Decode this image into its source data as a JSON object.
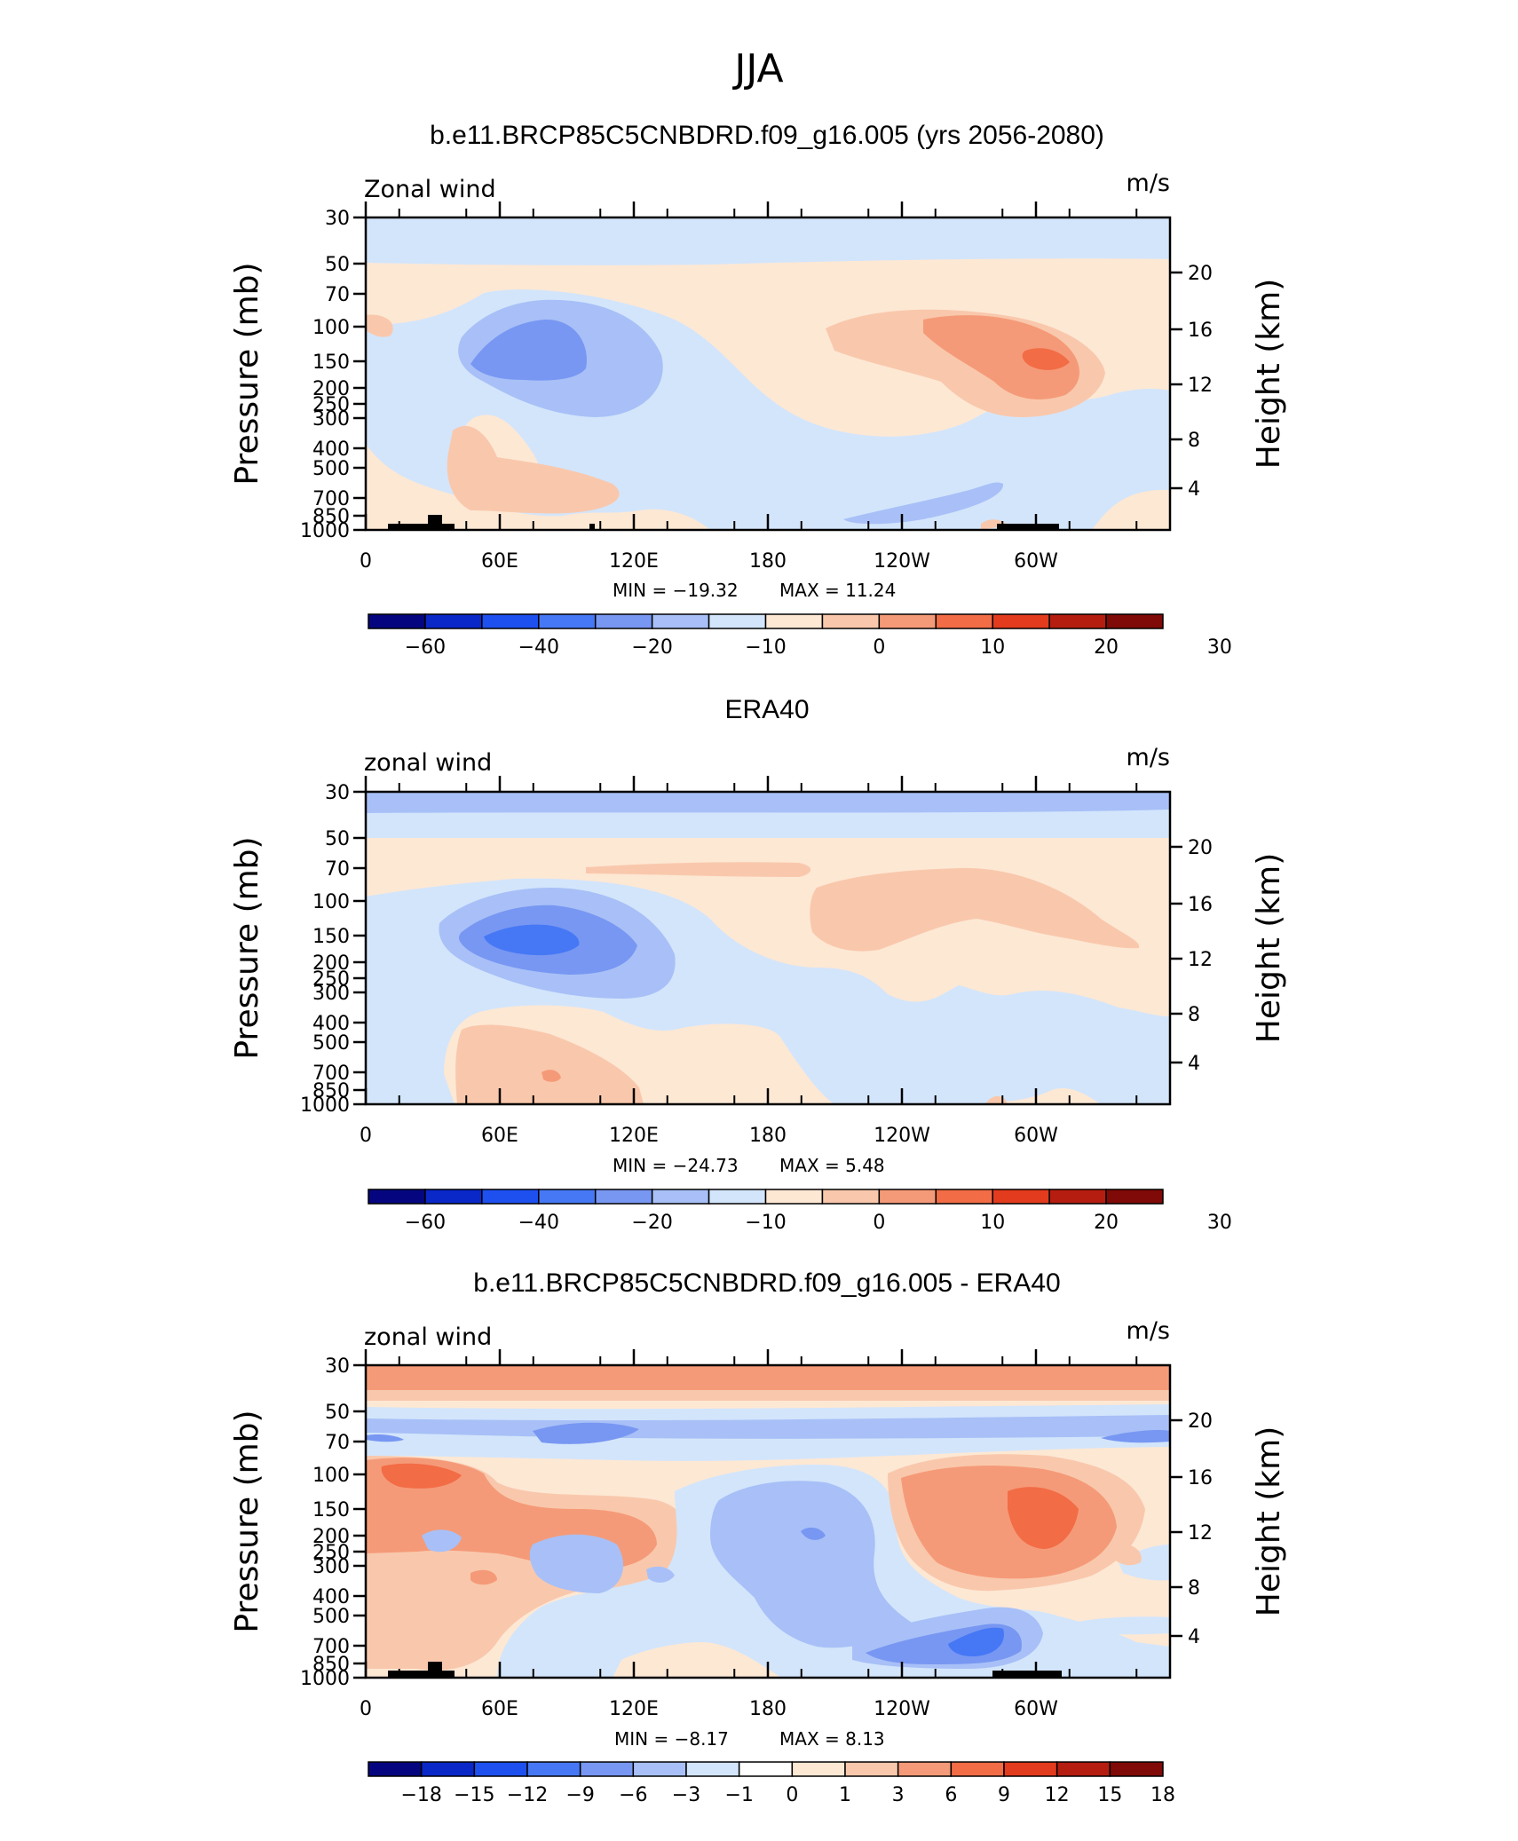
{
  "title": "JJA",
  "colors": {
    "model_obs_scale": [
      "#05067f",
      "#0a28c8",
      "#1e50f0",
      "#4678f5",
      "#7897f2",
      "#a8c0f7",
      "#d3e5fb",
      "#fde8d4",
      "#f9c8ac",
      "#f59a78",
      "#f26c46",
      "#e33b1d",
      "#b51d10",
      "#7f0a07"
    ],
    "diff_scale": [
      "#05067f",
      "#0a28c8",
      "#1e50f0",
      "#4678f5",
      "#7897f2",
      "#a8c0f7",
      "#d3e5fb",
      "#ffffff",
      "#fde8d4",
      "#f9c8ac",
      "#f59a78",
      "#f26c46",
      "#e33b1d",
      "#b51d10",
      "#7f0a07"
    ]
  },
  "chart_data": [
    {
      "type": "heatmap",
      "title": "b.e11.BRCP85C5CNBDRD.f09_g16.005 (yrs 2056-2080)",
      "left_label": "Zonal wind",
      "units": "m/s",
      "xlabel": "",
      "ylabel": "Pressure (mb)",
      "y2label": "Height (km)",
      "xticks": [
        "0",
        "60E",
        "120E",
        "180",
        "120W",
        "60W"
      ],
      "yticks": [
        "30",
        "50",
        "70",
        "100",
        "150",
        "200",
        "250",
        "300",
        "400",
        "500",
        "700",
        "850",
        "1000"
      ],
      "y2ticks": [
        "20",
        "16",
        "12",
        "8",
        "4"
      ],
      "min_label": "MIN = −19.32",
      "max_label": "MAX = 11.24",
      "min": -19.32,
      "max": 11.24,
      "colorbar_labels": [
        "−60",
        "−40",
        "−20",
        "−10",
        "0",
        "10",
        "20",
        "30"
      ],
      "regions": [
        {
          "level": 6,
          "area": "stratosphere band 30-50 mb"
        },
        {
          "level": 5,
          "area": "jet core near 75E 150 mb"
        },
        {
          "level": 4,
          "area": "jet center near 75E 150 mb"
        },
        {
          "level": 9,
          "area": "easterly-free max near 60W 150 mb"
        },
        {
          "level": 10,
          "area": "max near 60W 150 mb"
        }
      ]
    },
    {
      "type": "heatmap",
      "title": "ERA40",
      "left_label": "zonal wind",
      "units": "m/s",
      "xlabel": "",
      "ylabel": "Pressure (mb)",
      "y2label": "Height (km)",
      "xticks": [
        "0",
        "60E",
        "120E",
        "180",
        "120W",
        "60W"
      ],
      "yticks": [
        "30",
        "50",
        "70",
        "100",
        "150",
        "200",
        "250",
        "300",
        "400",
        "500",
        "700",
        "850",
        "1000"
      ],
      "y2ticks": [
        "20",
        "16",
        "12",
        "8",
        "4"
      ],
      "min_label": "MIN = −24.73",
      "max_label": "MAX = 5.48",
      "min": -24.73,
      "max": 5.48,
      "colorbar_labels": [
        "−60",
        "−40",
        "−20",
        "−10",
        "0",
        "10",
        "20",
        "30"
      ],
      "regions": [
        {
          "level": 5,
          "area": "top band 30-40 mb"
        },
        {
          "level": 3,
          "area": "jet center near 75E 150 mb"
        },
        {
          "level": 8,
          "area": "max near 60W 120 mb"
        }
      ]
    },
    {
      "type": "heatmap",
      "title": "b.e11.BRCP85C5CNBDRD.f09_g16.005 - ERA40",
      "left_label": "zonal wind",
      "units": "m/s",
      "xlabel": "",
      "ylabel": "Pressure (mb)",
      "y2label": "Height (km)",
      "xticks": [
        "0",
        "60E",
        "120E",
        "180",
        "120W",
        "60W"
      ],
      "yticks": [
        "30",
        "50",
        "70",
        "100",
        "150",
        "200",
        "250",
        "300",
        "400",
        "500",
        "700",
        "850",
        "1000"
      ],
      "y2ticks": [
        "20",
        "16",
        "12",
        "8",
        "4"
      ],
      "min_label": "MIN = −8.17",
      "max_label": "MAX = 8.13",
      "min": -8.17,
      "max": 8.13,
      "colorbar_labels": [
        "−18",
        "−15",
        "−12",
        "−9",
        "−6",
        "−3",
        "−1",
        "0",
        "1",
        "3",
        "6",
        "9",
        "12",
        "15",
        "18"
      ],
      "regions": [
        {
          "level": 10,
          "area": "stratosphere band 30-40 mb"
        },
        {
          "level": 11,
          "area": "max near 60W 150 mb"
        },
        {
          "level": 4,
          "area": "min near 75W 700 mb"
        }
      ]
    }
  ]
}
